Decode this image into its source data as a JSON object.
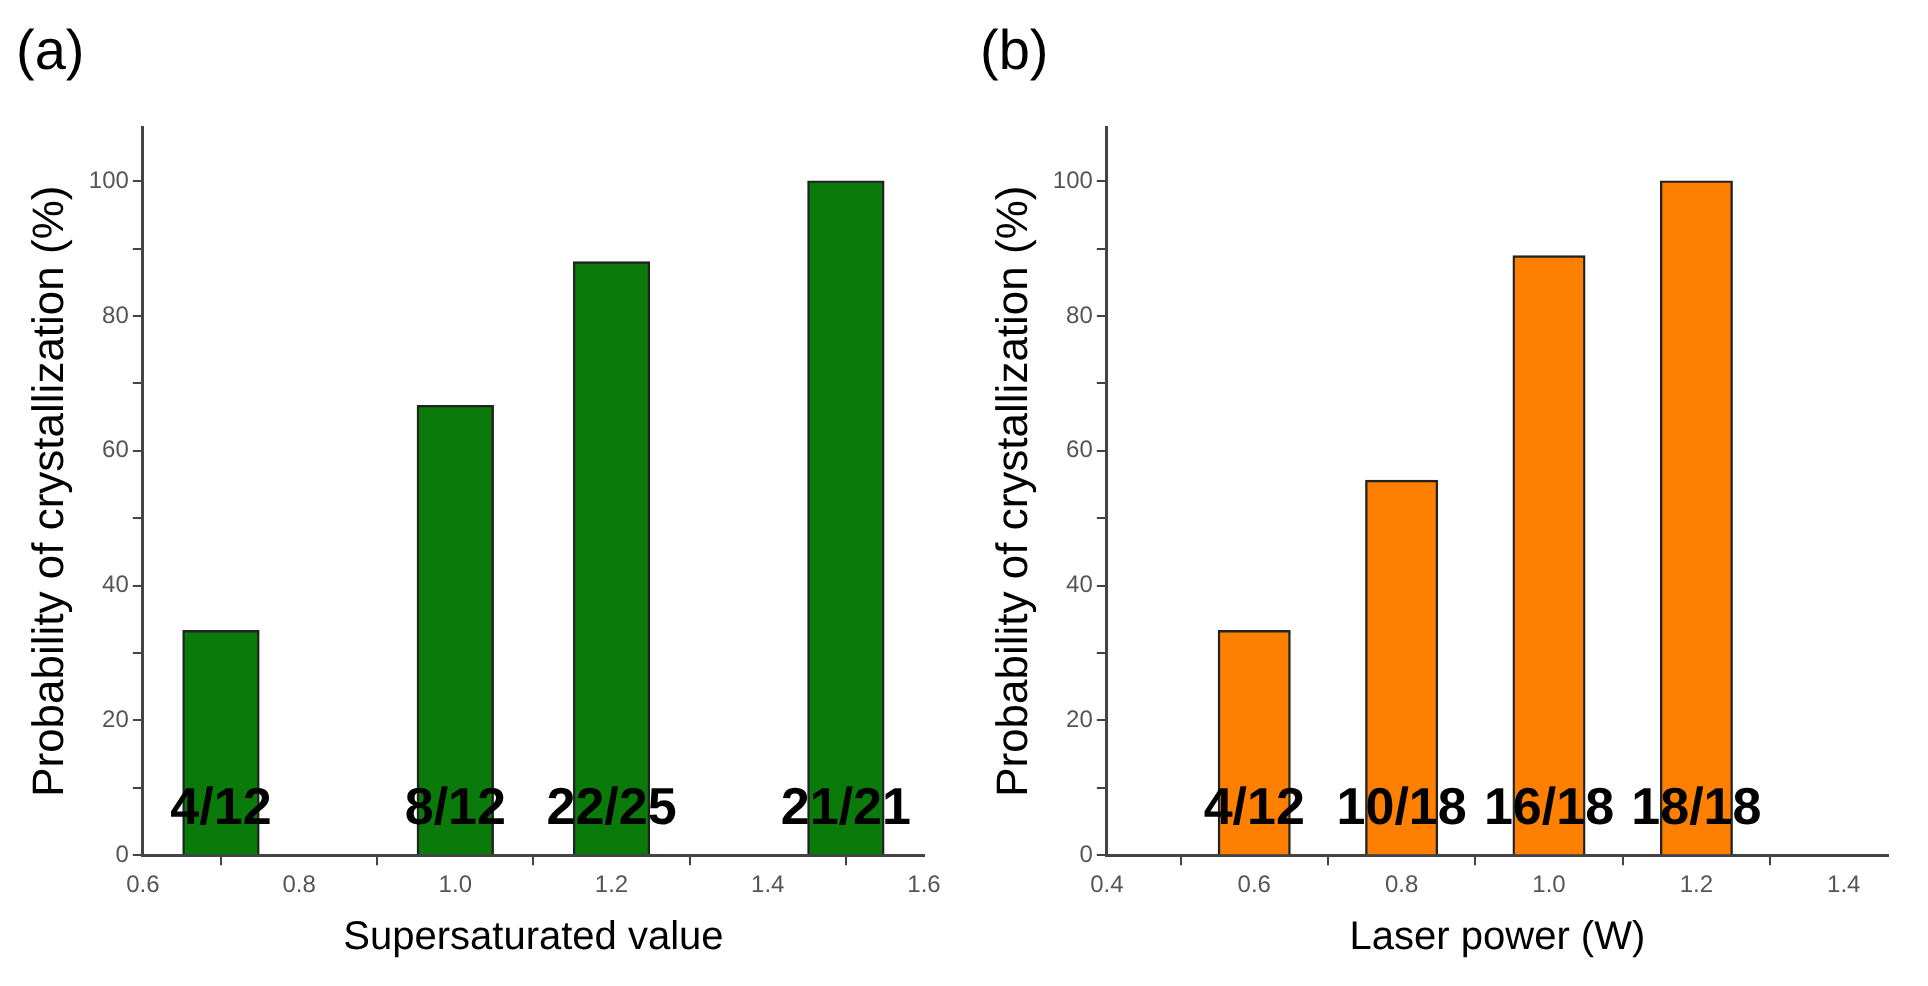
{
  "chart_data": [
    {
      "type": "bar",
      "title": "(a)",
      "xlabel": "Supersaturated value",
      "ylabel": "Probability of crystallization (%)",
      "x": [
        0.7,
        1.0,
        1.2,
        1.5
      ],
      "values": [
        33.3,
        66.7,
        88,
        100
      ],
      "color": "#0a7a0a",
      "annotations": [
        "4/12",
        "8/12",
        "22/25",
        "21/21"
      ],
      "xlim": [
        0.6,
        1.6
      ],
      "xticks": [
        {
          "value": 0.6,
          "label": "0.6"
        },
        {
          "value": 0.8,
          "label": "0.8"
        },
        {
          "value": 1.0,
          "label": "1.0"
        },
        {
          "value": 1.2,
          "label": "1.2"
        },
        {
          "value": 1.4,
          "label": "1.4"
        },
        {
          "value": 1.6,
          "label": "1.6"
        }
      ],
      "ylim": [
        0,
        108
      ],
      "yticks": [
        0,
        {
          "value": 10,
          "label": null
        },
        20,
        {
          "value": 30,
          "label": null
        },
        40,
        {
          "value": 50,
          "label": null
        },
        60,
        {
          "value": 70,
          "label": null
        },
        80,
        {
          "value": 90,
          "label": null
        },
        100
      ],
      "grid": false,
      "legend": false
    },
    {
      "type": "bar",
      "title": "(b)",
      "xlabel": "Laser power (W)",
      "ylabel": "Probability of crystallization (%)",
      "x": [
        0.6,
        0.8,
        1.0,
        1.2
      ],
      "values": [
        33.3,
        55.6,
        88.9,
        100
      ],
      "color": "#ff8000",
      "annotations": [
        "4/12",
        "10/18",
        "16/18",
        "18/18"
      ],
      "xlim": [
        0.4,
        1.46
      ],
      "xticks": [
        {
          "value": 0.4,
          "label": "0.4"
        },
        {
          "value": 0.6,
          "label": "0.6"
        },
        {
          "value": 0.8,
          "label": "0.8"
        },
        {
          "value": 1.0,
          "label": "1.0"
        },
        {
          "value": 1.2,
          "label": "1.2"
        },
        {
          "value": 1.4,
          "label": "1.4"
        }
      ],
      "ylim": [
        0,
        108
      ],
      "yticks": [
        0,
        {
          "value": 10,
          "label": null
        },
        20,
        {
          "value": 30,
          "label": null
        },
        40,
        {
          "value": 50,
          "label": null
        },
        60,
        {
          "value": 70,
          "label": null
        },
        80,
        {
          "value": 90,
          "label": null
        },
        100
      ],
      "grid": false,
      "legend": false
    }
  ]
}
